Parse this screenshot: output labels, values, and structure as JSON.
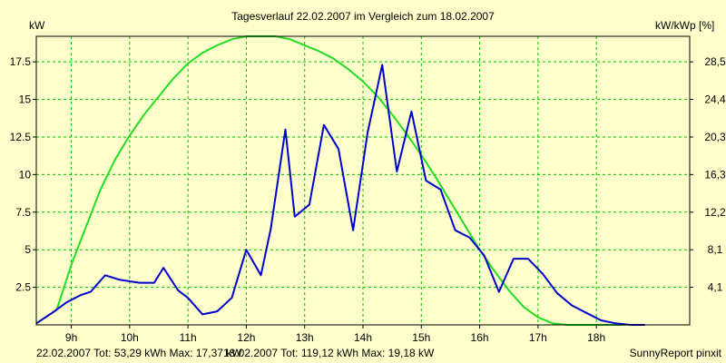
{
  "chart_data": {
    "type": "line",
    "title": "Tagesverlauf 22.02.2007 im Vergleich zum 18.02.2007",
    "ylabel_left": "kW",
    "ylabel_right": "kW/kWp [%]",
    "x_ticks": [
      9,
      10,
      11,
      12,
      13,
      14,
      15,
      16,
      17,
      18
    ],
    "x_tick_labels": [
      "9h",
      "10h",
      "11h",
      "12h",
      "13h",
      "14h",
      "15h",
      "16h",
      "17h",
      "18h"
    ],
    "xlim": [
      8.4,
      19.6
    ],
    "y_ticks": [
      2.5,
      5,
      7.5,
      10,
      12.5,
      15,
      17.5
    ],
    "y_tick_labels": [
      "2.5",
      "5",
      "7.5",
      "10",
      "12.5",
      "15",
      "17.5"
    ],
    "right_tick_labels": [
      "4,1",
      "8,1",
      "12,2",
      "16,3",
      "20,3",
      "24,4",
      "28,5"
    ],
    "ylim": [
      0,
      19.2
    ],
    "grid": true,
    "series": [
      {
        "color": "#0000cc",
        "x": [
          8.4,
          8.67,
          8.92,
          9.17,
          9.33,
          9.58,
          9.83,
          10.0,
          10.17,
          10.42,
          10.58,
          10.83,
          11.0,
          11.25,
          11.5,
          11.75,
          12.0,
          12.25,
          12.42,
          12.67,
          12.83,
          13.08,
          13.33,
          13.58,
          13.83,
          14.08,
          14.33,
          14.58,
          14.83,
          15.08,
          15.33,
          15.58,
          15.83,
          16.08,
          16.33,
          16.58,
          16.83,
          17.08,
          17.33,
          17.58,
          17.83,
          18.08,
          18.33,
          18.58,
          18.83
        ],
        "y": [
          0.1,
          0.8,
          1.5,
          2.0,
          2.2,
          3.3,
          3.0,
          2.9,
          2.8,
          2.8,
          3.8,
          2.3,
          1.8,
          0.7,
          0.9,
          1.8,
          5.0,
          3.3,
          6.4,
          13.0,
          7.2,
          8.0,
          13.3,
          11.7,
          6.3,
          12.8,
          17.3,
          10.2,
          14.2,
          9.6,
          9.0,
          6.3,
          5.8,
          4.6,
          2.2,
          4.4,
          4.4,
          3.4,
          2.1,
          1.3,
          0.8,
          0.3,
          0.1,
          0.0,
          0.0
        ]
      },
      {
        "color": "#22dd22",
        "x": [
          8.4,
          8.75,
          9.0,
          9.25,
          9.5,
          9.75,
          10.0,
          10.25,
          10.5,
          10.75,
          11.0,
          11.25,
          11.5,
          11.75,
          12.0,
          12.25,
          12.5,
          12.75,
          13.0,
          13.25,
          13.5,
          13.75,
          14.0,
          14.25,
          14.5,
          14.75,
          15.0,
          15.25,
          15.5,
          15.75,
          16.0,
          16.25,
          16.5,
          16.75,
          17.0,
          17.25,
          17.5,
          17.75,
          18.0,
          18.25,
          18.5
        ],
        "y": [
          0.1,
          1.0,
          4.0,
          6.5,
          9.0,
          11.0,
          12.6,
          14.0,
          15.2,
          16.4,
          17.4,
          18.1,
          18.6,
          19.0,
          19.2,
          19.2,
          19.2,
          19.0,
          18.6,
          18.2,
          17.7,
          17.0,
          16.2,
          15.2,
          14.0,
          12.7,
          11.3,
          9.8,
          8.2,
          6.6,
          5.0,
          3.6,
          2.3,
          1.2,
          0.5,
          0.1,
          0.0,
          0.0,
          0.0,
          0.0,
          0.0
        ]
      }
    ]
  },
  "footer": {
    "series1_text": "22.02.2007 Tot: 53,29 kWh Max: 17,37 kW",
    "series1_color": "#0000cc",
    "series2_text": "18.02.2007 Tot: 119,12 kWh Max: 19,18 kW",
    "series2_color": "#22dd22",
    "credit": "SunnyReport pinxit"
  }
}
